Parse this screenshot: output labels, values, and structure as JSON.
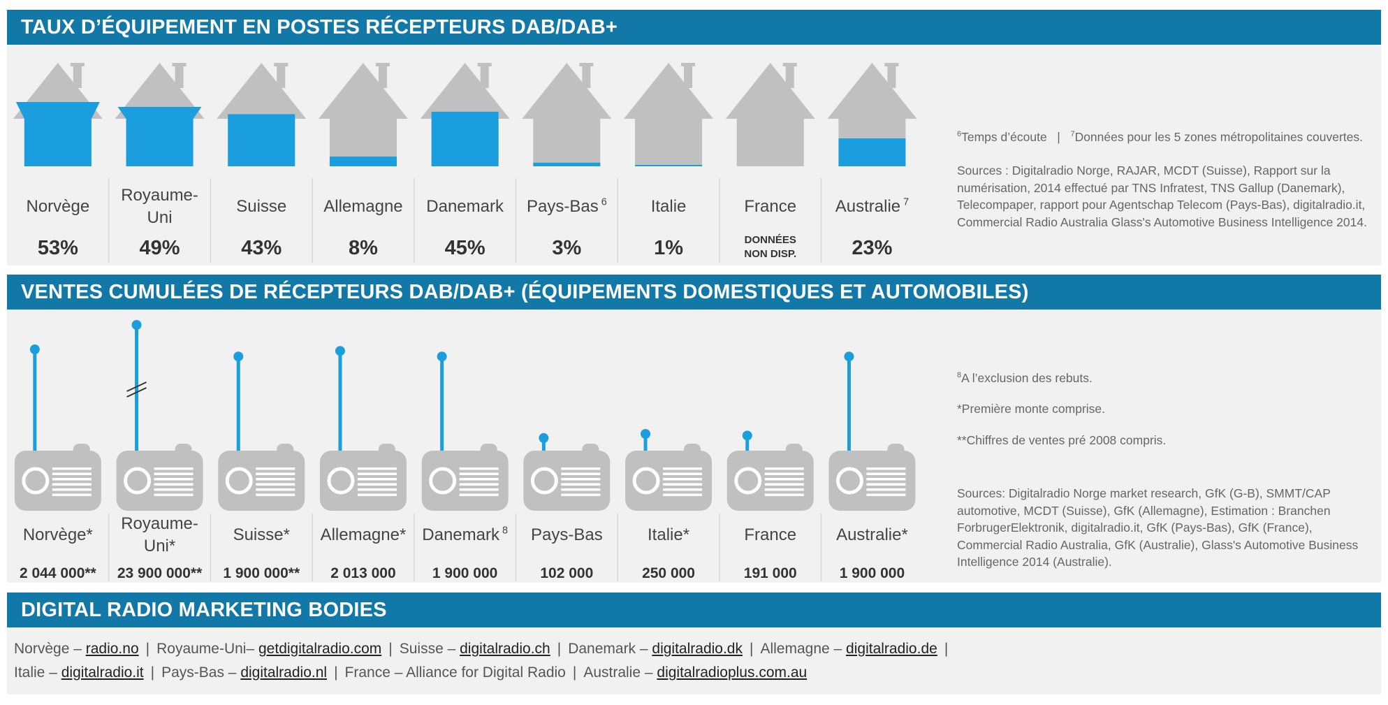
{
  "section1": {
    "title": "TAUX D’ÉQUIPEMENT EN POSTES RÉCEPTEURS DAB/DAB+",
    "footnote": {
      "sup6": "6",
      "text6": "Temps d’écoute",
      "divider": "|",
      "sup7": "7",
      "text7": "Données pour les 5 zones métropolitaines couvertes."
    },
    "sources": "Sources : Digitalradio Norge, RAJAR, MCDT (Suisse), Rapport sur la numérisation, 2014 effectué par TNS Infratest, TNS Gallup (Danemark), Telecompaper, rapport pour Agentschap Telecom (Pays-Bas), digitalradio.it, Commercial Radio Australia Glass's Automotive Business Intelligence 2014."
  },
  "section2": {
    "title": "VENTES CUMULÉES DE RÉCEPTEURS DAB/DAB+ (ÉQUIPEMENTS DOMESTIQUES ET AUTOMOBILES)",
    "note8_sup": "8",
    "note8": "A l’exclusion des rebuts.",
    "note_star": "*Première monte comprise.",
    "note_2star": "**Chiffres de ventes pré 2008 compris.",
    "sources": "Sources: Digitalradio Norge market research, GfK (G-B), SMMT/CAP automotive, MCDT (Suisse), GfK (Allemagne), Estimation : Branchen ForbrugerElektronik, digitalradio.it, GfK (Pays-Bas), GfK (France), Commercial Radio Australia, GfK (Australie), Glass's Automotive Business Intelligence 2014 (Australie)."
  },
  "section3": {
    "title": "DIGITAL RADIO MARKETING BODIES",
    "line1": [
      {
        "label": "Norvège – ",
        "link": "radio.no"
      },
      {
        "label": "Royaume-Uni– ",
        "link": "getdigitalradio.com"
      },
      {
        "label": "Suisse – ",
        "link": "digitalradio.ch"
      },
      {
        "label": "Danemark – ",
        "link": "digitalradio.dk"
      },
      {
        "label": "Allemagne – ",
        "link": "digitalradio.de"
      }
    ],
    "line2": [
      {
        "label": "Italie – ",
        "link": "digitalradio.it"
      },
      {
        "label": "Pays-Bas –  ",
        "link": "digitalradio.nl"
      },
      {
        "label": "France – Alliance for Digital Radio",
        "link": ""
      },
      {
        "label": "Australie – ",
        "link": "digitalradioplus.com.au"
      }
    ],
    "separator": "|"
  },
  "colors": {
    "band": "#1278a8",
    "fill": "#1a9ede",
    "gray": "#c0c0c0",
    "panel": "#f1f1f1"
  },
  "chart_data": [
    {
      "type": "bar",
      "title": "TAUX D’ÉQUIPEMENT EN POSTES RÉCEPTEURS DAB/DAB+",
      "categories": [
        "Norvège",
        "Royaume-Uni",
        "Suisse",
        "Allemagne",
        "Danemark",
        "Pays-Bas",
        "Italie",
        "France",
        "Australie"
      ],
      "category_sup": [
        "",
        "",
        "",
        "",
        "",
        "6",
        "",
        "",
        "7"
      ],
      "values": [
        53,
        49,
        43,
        8,
        45,
        3,
        1,
        null,
        23
      ],
      "value_labels": [
        "53%",
        "49%",
        "43%",
        "8%",
        "45%",
        "3%",
        "1%",
        "DONNÉES NON DISP.",
        "23%"
      ],
      "ylim": [
        0,
        100
      ]
    },
    {
      "type": "bar",
      "title": "VENTES CUMULÉES DE RÉCEPTEURS DAB/DAB+ (ÉQUIPEMENTS DOMESTIQUES ET AUTOMOBILES)",
      "categories": [
        "Norvège*",
        "Royaume-Uni*",
        "Suisse*",
        "Allemagne*",
        "Danemark",
        "Pays-Bas",
        "Italie*",
        "France",
        "Australie*"
      ],
      "category_sup": [
        "",
        "",
        "",
        "",
        "8",
        "",
        "",
        "",
        ""
      ],
      "values": [
        2044000,
        23900000,
        1900000,
        2013000,
        1900000,
        102000,
        250000,
        191000,
        1900000
      ],
      "value_labels": [
        "2 044 000**",
        "23 900 000**",
        "1 900 000**",
        "2 013 000",
        "1 900 000",
        "102 000",
        "250 000",
        "191 000",
        "1 900 000"
      ],
      "axis_break": "Royaume-Uni*"
    }
  ]
}
